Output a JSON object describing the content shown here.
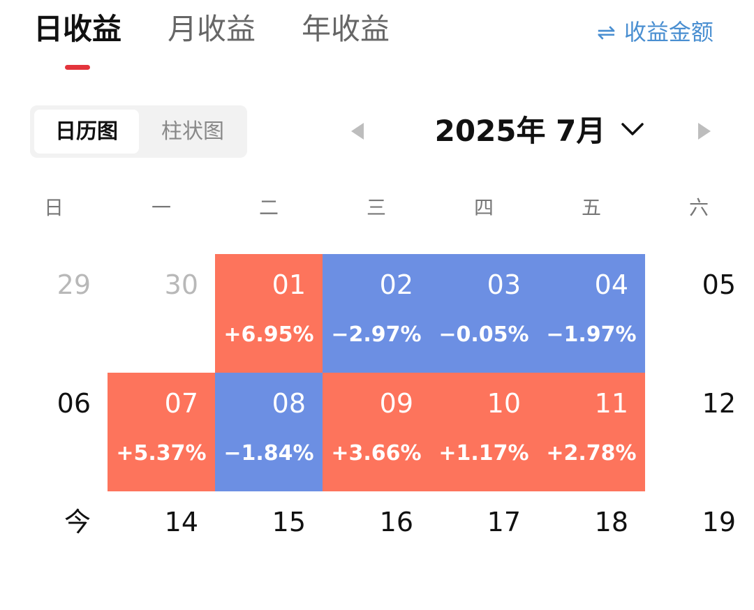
{
  "tabs": [
    {
      "label": "日收益",
      "active": true
    },
    {
      "label": "月收益",
      "active": false
    },
    {
      "label": "年收益",
      "active": false
    }
  ],
  "switch_link": {
    "icon": "swap-arrows-icon",
    "glyph": "⇌",
    "label": "收益金额"
  },
  "view_toggle": {
    "active_label": "日历图",
    "inactive_label": "柱状图"
  },
  "month_nav": {
    "title": "2025年 7月"
  },
  "weekdays": [
    "日",
    "一",
    "二",
    "三",
    "四",
    "五",
    "六"
  ],
  "calendar": {
    "rows": [
      [
        {
          "day": "29",
          "type": "muted"
        },
        {
          "day": "30",
          "type": "muted"
        },
        {
          "day": "01",
          "pct": "+6.95%",
          "type": "up"
        },
        {
          "day": "02",
          "pct": "−2.97%",
          "type": "down"
        },
        {
          "day": "03",
          "pct": "−0.05%",
          "type": "down"
        },
        {
          "day": "04",
          "pct": "−1.97%",
          "type": "down"
        },
        {
          "day": "05",
          "type": "plain"
        }
      ],
      [
        {
          "day": "06",
          "type": "plain"
        },
        {
          "day": "07",
          "pct": "+5.37%",
          "type": "up"
        },
        {
          "day": "08",
          "pct": "−1.84%",
          "type": "down"
        },
        {
          "day": "09",
          "pct": "+3.66%",
          "type": "up"
        },
        {
          "day": "10",
          "pct": "+1.17%",
          "type": "up"
        },
        {
          "day": "11",
          "pct": "+2.78%",
          "type": "up"
        },
        {
          "day": "12",
          "type": "plain"
        }
      ],
      [
        {
          "day": "今",
          "type": "plain"
        },
        {
          "day": "14",
          "type": "plain"
        },
        {
          "day": "15",
          "type": "plain"
        },
        {
          "day": "16",
          "type": "plain"
        },
        {
          "day": "17",
          "type": "plain"
        },
        {
          "day": "18",
          "type": "plain"
        },
        {
          "day": "19",
          "type": "plain"
        }
      ]
    ]
  },
  "colors": {
    "up": "#fd745c",
    "down": "#6c8fe3",
    "accent": "#e3343c",
    "link": "#4a8fd1"
  }
}
